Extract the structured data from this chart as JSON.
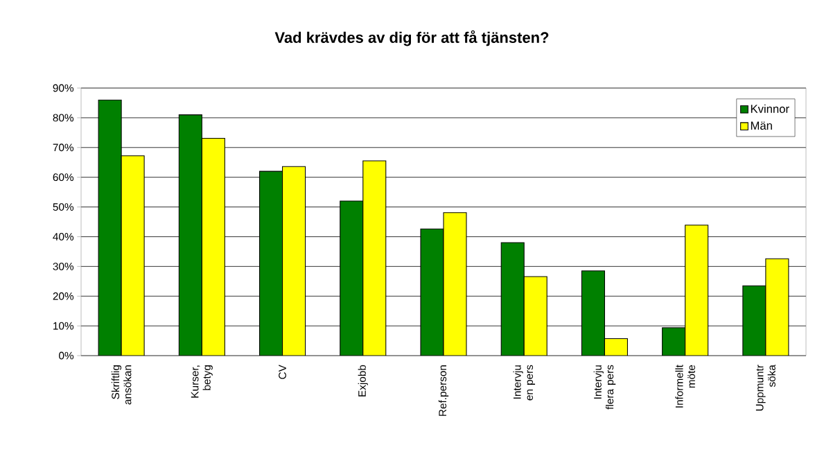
{
  "chart_data": {
    "type": "bar",
    "title": "Vad krävdes av dig för att få tjänsten?",
    "categories": [
      "Skriftlig ansökan",
      "Kurser, betyg",
      "CV",
      "Exjobb",
      "Ref.person",
      "Intervju en pers",
      "Intervju flera pers",
      "Informellt möte",
      "Uppmuntr söka"
    ],
    "series": [
      {
        "name": "Kvinnor",
        "color": "#008000",
        "values": [
          86,
          81,
          62,
          52,
          42.6,
          38,
          28.5,
          9.4,
          23.5
        ]
      },
      {
        "name": "Män",
        "color": "#ffff00",
        "values": [
          67.2,
          73.1,
          63.6,
          65.5,
          48.1,
          26.6,
          5.7,
          43.9,
          32.6
        ]
      }
    ],
    "ylim": [
      0,
      90
    ],
    "yticks": [
      {
        "value": 0,
        "label": "0%"
      },
      {
        "value": 10,
        "label": "10%"
      },
      {
        "value": 20,
        "label": "20%"
      },
      {
        "value": 30,
        "label": "30%"
      },
      {
        "value": 40,
        "label": "40%"
      },
      {
        "value": 50,
        "label": "50%"
      },
      {
        "value": 60,
        "label": "60%"
      },
      {
        "value": 70,
        "label": "70%"
      },
      {
        "value": 80,
        "label": "80%"
      },
      {
        "value": 90,
        "label": "90%"
      }
    ],
    "grid": "y",
    "legend": "top right"
  }
}
